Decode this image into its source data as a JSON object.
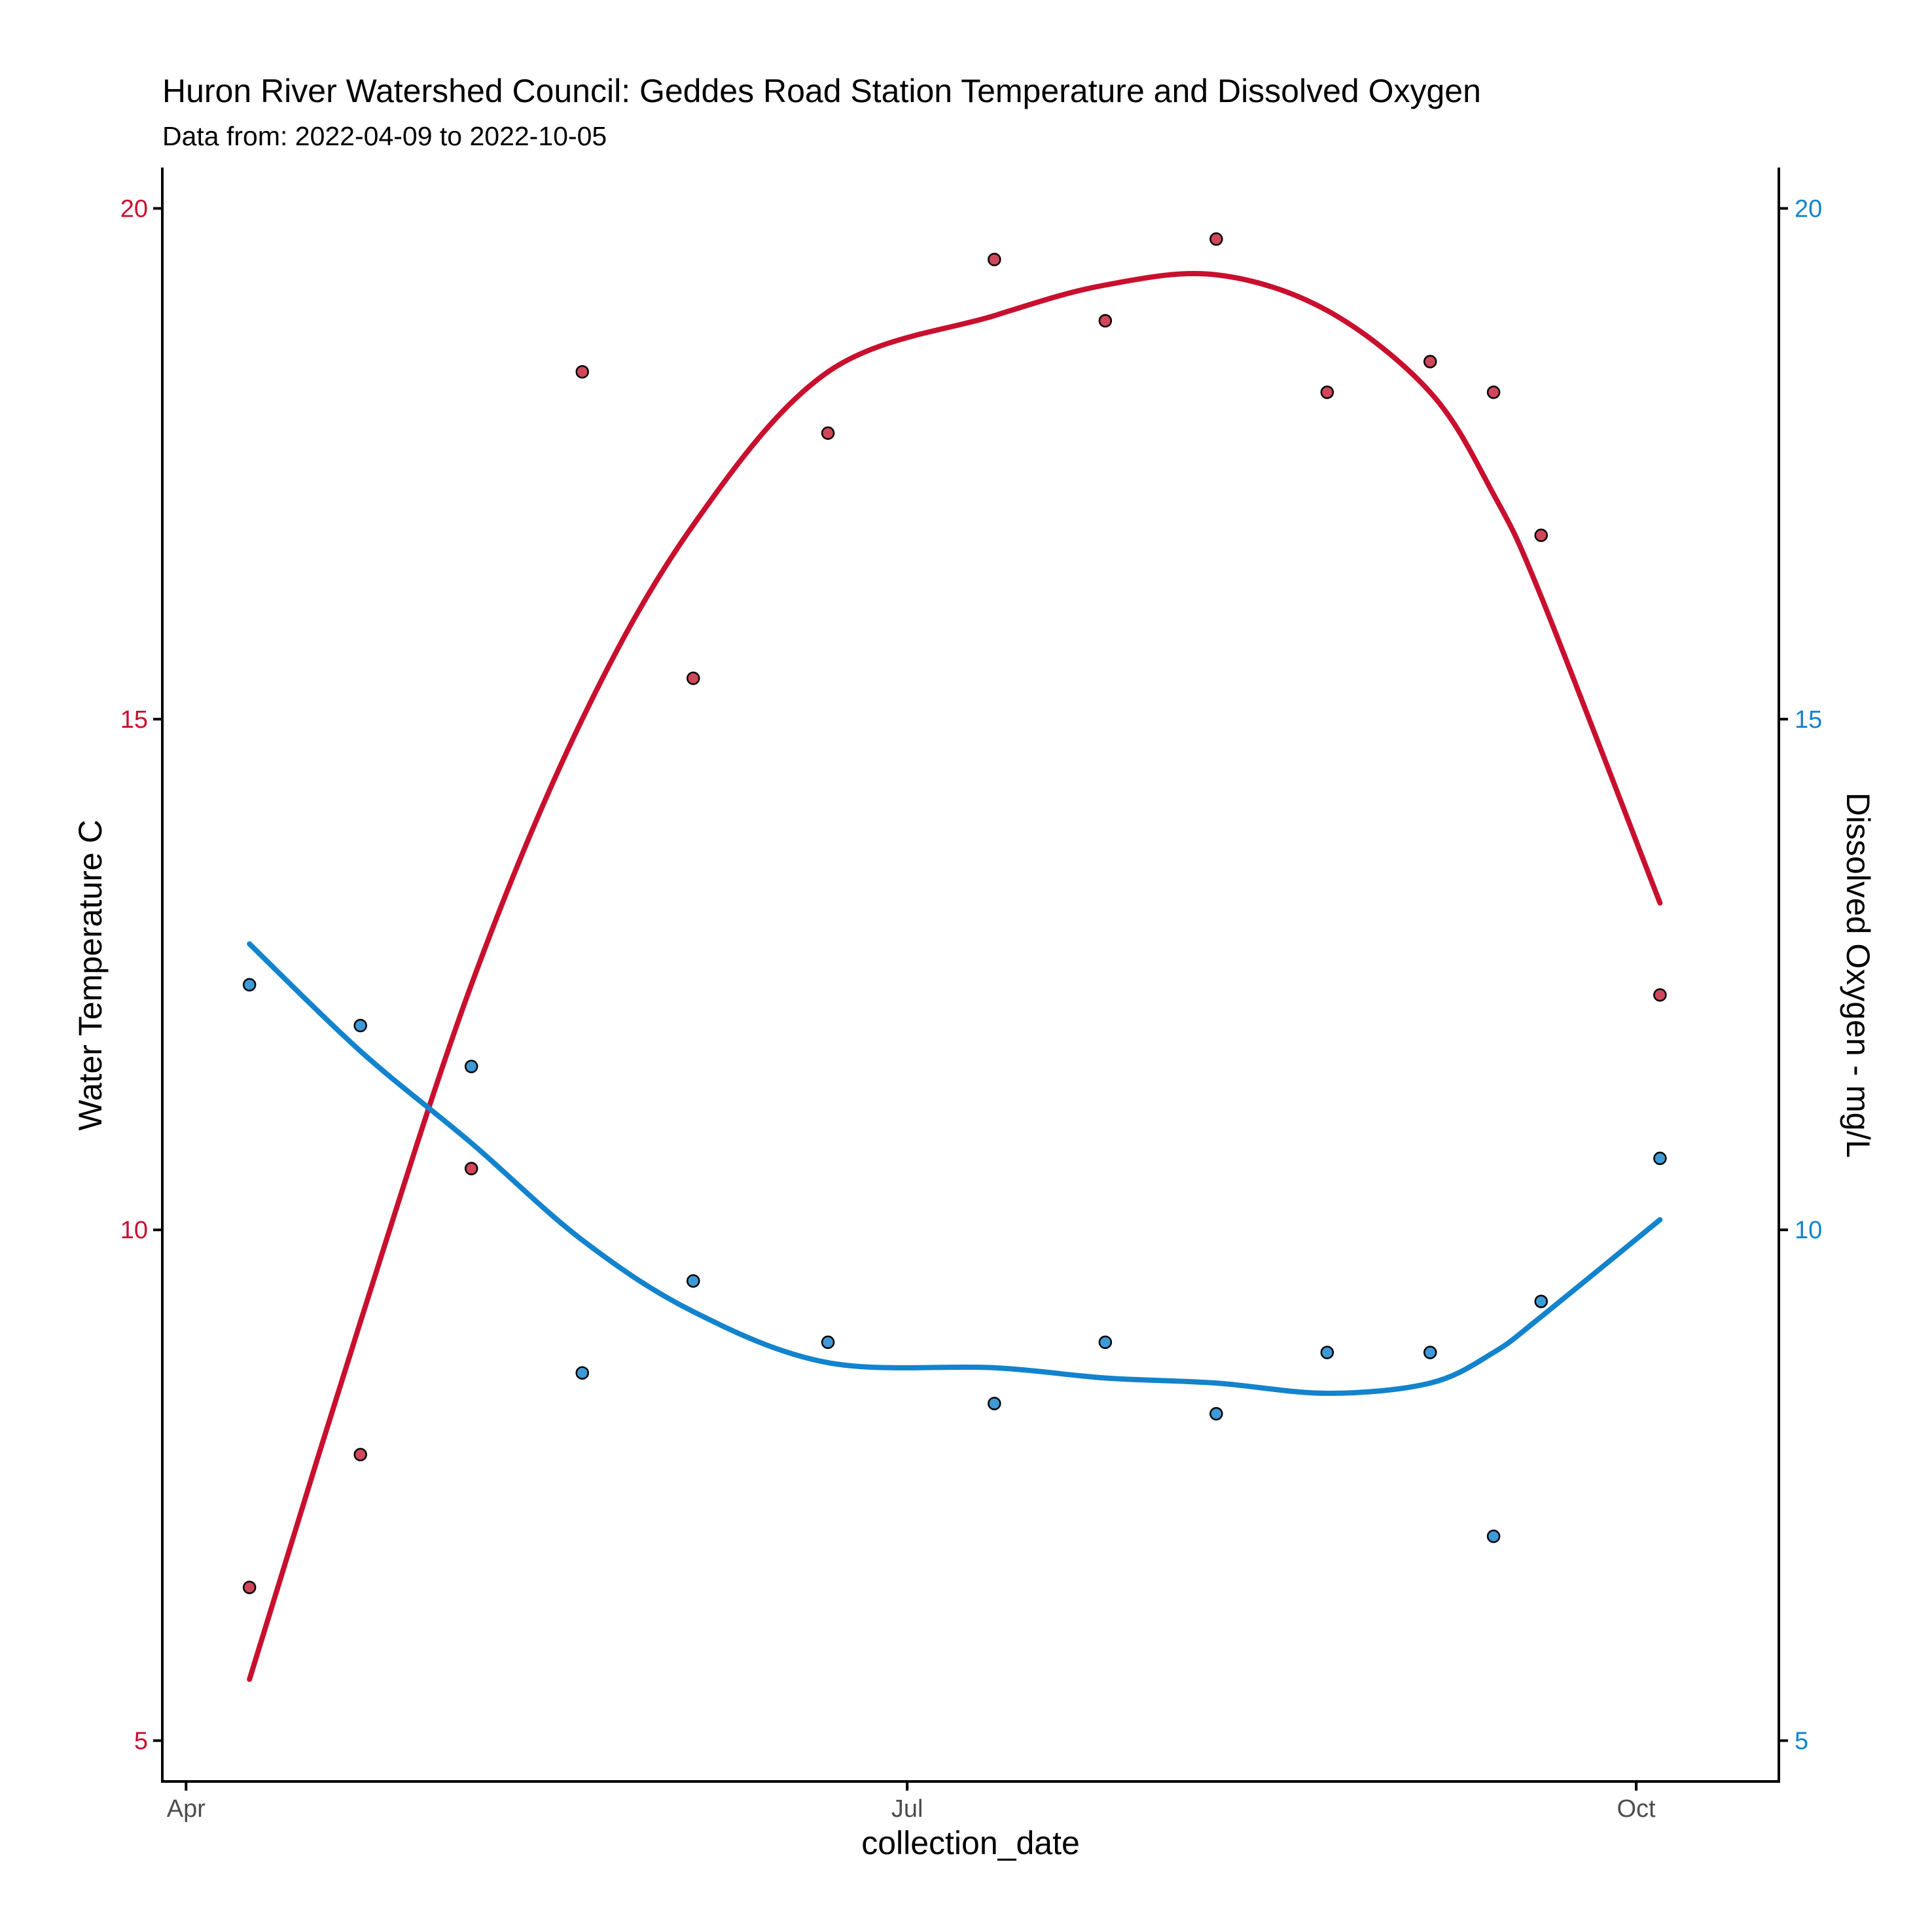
{
  "chart_data": {
    "type": "scatter",
    "title": "Huron River Watershed Council: Geddes Road Station Temperature and Dissolved Oxygen",
    "subtitle": "Data from: 2022-04-09 to 2022-10-05",
    "xlabel": "collection_date",
    "ylabel_left": "Water Temperature C",
    "ylabel_right": "Dissolved Oxygen - mg/L",
    "xlim": [
      "2022-03-29",
      "2022-10-19"
    ],
    "ylim_left": [
      4.6,
      20.4
    ],
    "ylim_right": [
      4.6,
      20.4
    ],
    "x_ticks": [
      {
        "date": "2022-04-01",
        "label": "Apr"
      },
      {
        "date": "2022-07-01",
        "label": "Jul"
      },
      {
        "date": "2022-10-01",
        "label": "Oct"
      }
    ],
    "y_left_ticks": [
      5,
      10,
      15,
      20
    ],
    "y_right_ticks": [
      5,
      10,
      15,
      20
    ],
    "grid": false,
    "legend": "none",
    "colors": {
      "temperature": "#c8102e",
      "temperature_point": "#d0465a",
      "oxygen": "#1283cc",
      "oxygen_point": "#3d9ad6"
    },
    "series": [
      {
        "axis": "left",
        "x": [
          "2022-04-09",
          "2022-04-23",
          "2022-05-07",
          "2022-05-21",
          "2022-06-04",
          "2022-06-21",
          "2022-07-12",
          "2022-07-26",
          "2022-08-09",
          "2022-08-23",
          "2022-09-05",
          "2022-09-13",
          "2022-09-19",
          "2022-10-04"
        ],
        "y": [
          6.5,
          7.8,
          10.6,
          18.4,
          15.4,
          17.8,
          19.5,
          18.9,
          19.7,
          18.2,
          18.5,
          18.2,
          16.8,
          12.3
        ]
      },
      {
        "axis": "right",
        "x": [
          "2022-04-09",
          "2022-04-23",
          "2022-05-07",
          "2022-05-21",
          "2022-06-04",
          "2022-06-21",
          "2022-07-12",
          "2022-07-26",
          "2022-08-09",
          "2022-08-23",
          "2022-09-05",
          "2022-09-13",
          "2022-09-19",
          "2022-10-04"
        ],
        "y": [
          12.4,
          12.0,
          11.6,
          8.6,
          9.5,
          8.9,
          8.3,
          8.9,
          8.2,
          8.8,
          8.8,
          7.0,
          9.3,
          10.7
        ]
      }
    ],
    "trend_lines": [
      {
        "axis": "left",
        "x": [
          "2022-04-09",
          "2022-04-23",
          "2022-05-07",
          "2022-05-21",
          "2022-06-04",
          "2022-06-21",
          "2022-07-12",
          "2022-07-26",
          "2022-08-09",
          "2022-08-23",
          "2022-09-05",
          "2022-09-13",
          "2022-09-19",
          "2022-10-04"
        ],
        "y": [
          5.6,
          9.1,
          12.4,
          15.0,
          16.9,
          18.4,
          18.95,
          19.25,
          19.35,
          19.0,
          18.2,
          17.2,
          16.2,
          13.2
        ]
      },
      {
        "axis": "right",
        "x": [
          "2022-04-09",
          "2022-04-23",
          "2022-05-07",
          "2022-05-21",
          "2022-06-04",
          "2022-06-21",
          "2022-07-12",
          "2022-07-26",
          "2022-08-09",
          "2022-08-23",
          "2022-09-05",
          "2022-09-13",
          "2022-09-19",
          "2022-10-04"
        ],
        "y": [
          12.8,
          11.75,
          10.85,
          9.9,
          9.2,
          8.7,
          8.65,
          8.55,
          8.5,
          8.4,
          8.5,
          8.8,
          9.15,
          10.1
        ]
      }
    ]
  }
}
